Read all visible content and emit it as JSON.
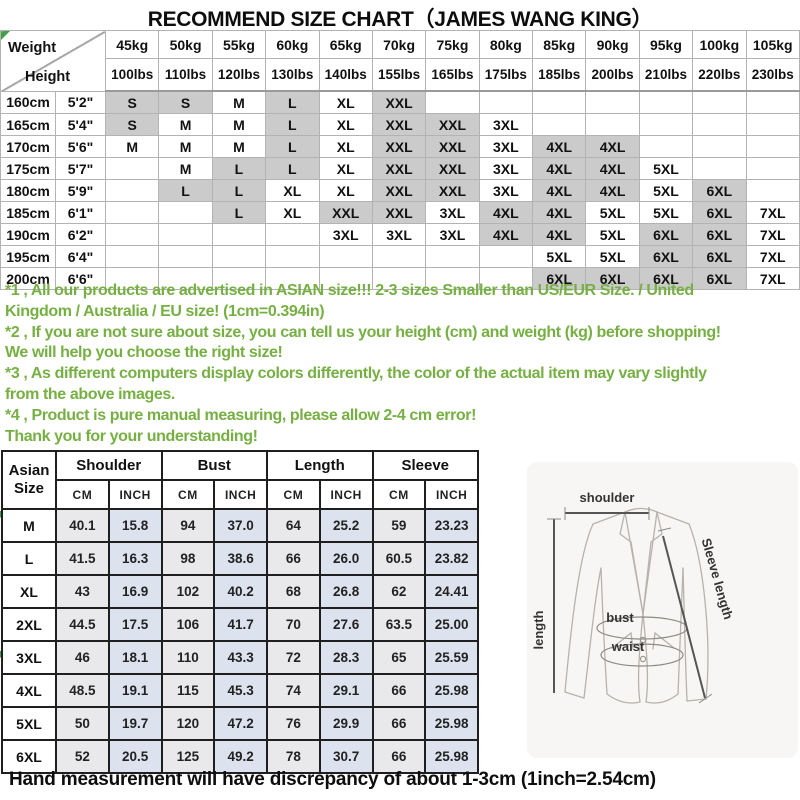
{
  "title": "RECOMMEND SIZE CHART（JAMES WANG KING）",
  "size_matrix": {
    "corner": {
      "top": "Weight",
      "bottom": "Height"
    },
    "weights_kg": [
      "45kg",
      "50kg",
      "55kg",
      "60kg",
      "65kg",
      "70kg",
      "75kg",
      "80kg",
      "85kg",
      "90kg",
      "95kg",
      "100kg",
      "105kg"
    ],
    "weights_lbs": [
      "100lbs",
      "110lbs",
      "120lbs",
      "130lbs",
      "140lbs",
      "155lbs",
      "165lbs",
      "175lbs",
      "185lbs",
      "200lbs",
      "210lbs",
      "220lbs",
      "230lbs"
    ],
    "gray_sizes": [
      "S",
      "L",
      "XXL",
      "4XL",
      "6XL"
    ],
    "rows": [
      {
        "cm": "160cm",
        "ft": "5'2\"",
        "sizes": [
          "S",
          "S",
          "M",
          "L",
          "XL",
          "XXL",
          "",
          "",
          "",
          "",
          "",
          "",
          ""
        ]
      },
      {
        "cm": "165cm",
        "ft": "5'4\"",
        "sizes": [
          "S",
          "M",
          "M",
          "L",
          "XL",
          "XXL",
          "XXL",
          "3XL",
          "",
          "",
          "",
          "",
          ""
        ]
      },
      {
        "cm": "170cm",
        "ft": "5'6\"",
        "sizes": [
          "M",
          "M",
          "M",
          "L",
          "XL",
          "XXL",
          "XXL",
          "3XL",
          "4XL",
          "4XL",
          "",
          "",
          ""
        ]
      },
      {
        "cm": "175cm",
        "ft": "5'7\"",
        "sizes": [
          "",
          "M",
          "L",
          "L",
          "XL",
          "XXL",
          "XXL",
          "3XL",
          "4XL",
          "4XL",
          "5XL",
          "",
          ""
        ]
      },
      {
        "cm": "180cm",
        "ft": "5'9\"",
        "sizes": [
          "",
          "L",
          "L",
          "XL",
          "XL",
          "XXL",
          "XXL",
          "3XL",
          "4XL",
          "4XL",
          "5XL",
          "6XL",
          ""
        ]
      },
      {
        "cm": "185cm",
        "ft": "6'1\"",
        "sizes": [
          "",
          "",
          "L",
          "XL",
          "XXL",
          "XXL",
          "3XL",
          "4XL",
          "4XL",
          "5XL",
          "5XL",
          "6XL",
          "7XL"
        ]
      },
      {
        "cm": "190cm",
        "ft": "6'2\"",
        "sizes": [
          "",
          "",
          "",
          "",
          "3XL",
          "3XL",
          "3XL",
          "4XL",
          "4XL",
          "5XL",
          "6XL",
          "6XL",
          "7XL"
        ]
      },
      {
        "cm": "195cm",
        "ft": "6'4\"",
        "sizes": [
          "",
          "",
          "",
          "",
          "",
          "",
          "",
          "",
          "5XL",
          "5XL",
          "6XL",
          "6XL",
          "7XL"
        ]
      },
      {
        "cm": "200cm",
        "ft": "6'6\"",
        "sizes": [
          "",
          "",
          "",
          "",
          "",
          "",
          "",
          "",
          "6XL",
          "6XL",
          "6XL",
          "6XL",
          "7XL"
        ]
      }
    ]
  },
  "notes": {
    "lines": [
      "*1 , All our products are advertised in ASIAN size!!! 2-3 sizes Smaller than US/EUR Size. / United\nKingdom / Australia / EU size! (1cm=0.394in)",
      "*2 , If you are not sure about size, you can tell us your height (cm) and weight (kg) before shopping!\nWe will help you choose the right size!",
      "*3 , As different computers display colors differently, the color of the actual item may vary slightly\nfrom the above images.",
      "*4 , Product is pure manual measuring, please allow 2-4 cm error!",
      "Thank you for your understanding!"
    ]
  },
  "measure_table": {
    "corner": "Asian Size",
    "groups": [
      "Shoulder",
      "Bust",
      "Length",
      "Sleeve"
    ],
    "units": [
      "CM",
      "INCH"
    ],
    "rows": [
      {
        "size": "M",
        "values": [
          "40.1",
          "15.8",
          "94",
          "37.0",
          "64",
          "25.2",
          "59",
          "23.23"
        ]
      },
      {
        "size": "L",
        "values": [
          "41.5",
          "16.3",
          "98",
          "38.6",
          "66",
          "26.0",
          "60.5",
          "23.82"
        ]
      },
      {
        "size": "XL",
        "values": [
          "43",
          "16.9",
          "102",
          "40.2",
          "68",
          "26.8",
          "62",
          "24.41"
        ]
      },
      {
        "size": "2XL",
        "values": [
          "44.5",
          "17.5",
          "106",
          "41.7",
          "70",
          "27.6",
          "63.5",
          "25.00"
        ]
      },
      {
        "size": "3XL",
        "values": [
          "46",
          "18.1",
          "110",
          "43.3",
          "72",
          "28.3",
          "65",
          "25.59"
        ]
      },
      {
        "size": "4XL",
        "values": [
          "48.5",
          "19.1",
          "115",
          "45.3",
          "74",
          "29.1",
          "66",
          "25.98"
        ]
      },
      {
        "size": "5XL",
        "values": [
          "50",
          "19.7",
          "120",
          "47.2",
          "76",
          "29.9",
          "66",
          "25.98"
        ]
      },
      {
        "size": "6XL",
        "values": [
          "52",
          "20.5",
          "125",
          "49.2",
          "78",
          "30.7",
          "66",
          "25.98"
        ]
      }
    ]
  },
  "diagram": {
    "labels": {
      "shoulder": "shoulder",
      "length": "length",
      "sleeve": "Sleeve length",
      "bust": "bust",
      "waist": "waist"
    }
  },
  "footer": "Hand measurement will have discrepancy of about 1-3cm (1inch=2.54cm)",
  "colors": {
    "note_green": "#76b043",
    "matrix_gray_cell": "#cbcbcb",
    "cm_cell_tint": "#e9e9eb",
    "inch_cell_tint": "#dde3ee",
    "corner_mark_green": "#3fa047"
  }
}
